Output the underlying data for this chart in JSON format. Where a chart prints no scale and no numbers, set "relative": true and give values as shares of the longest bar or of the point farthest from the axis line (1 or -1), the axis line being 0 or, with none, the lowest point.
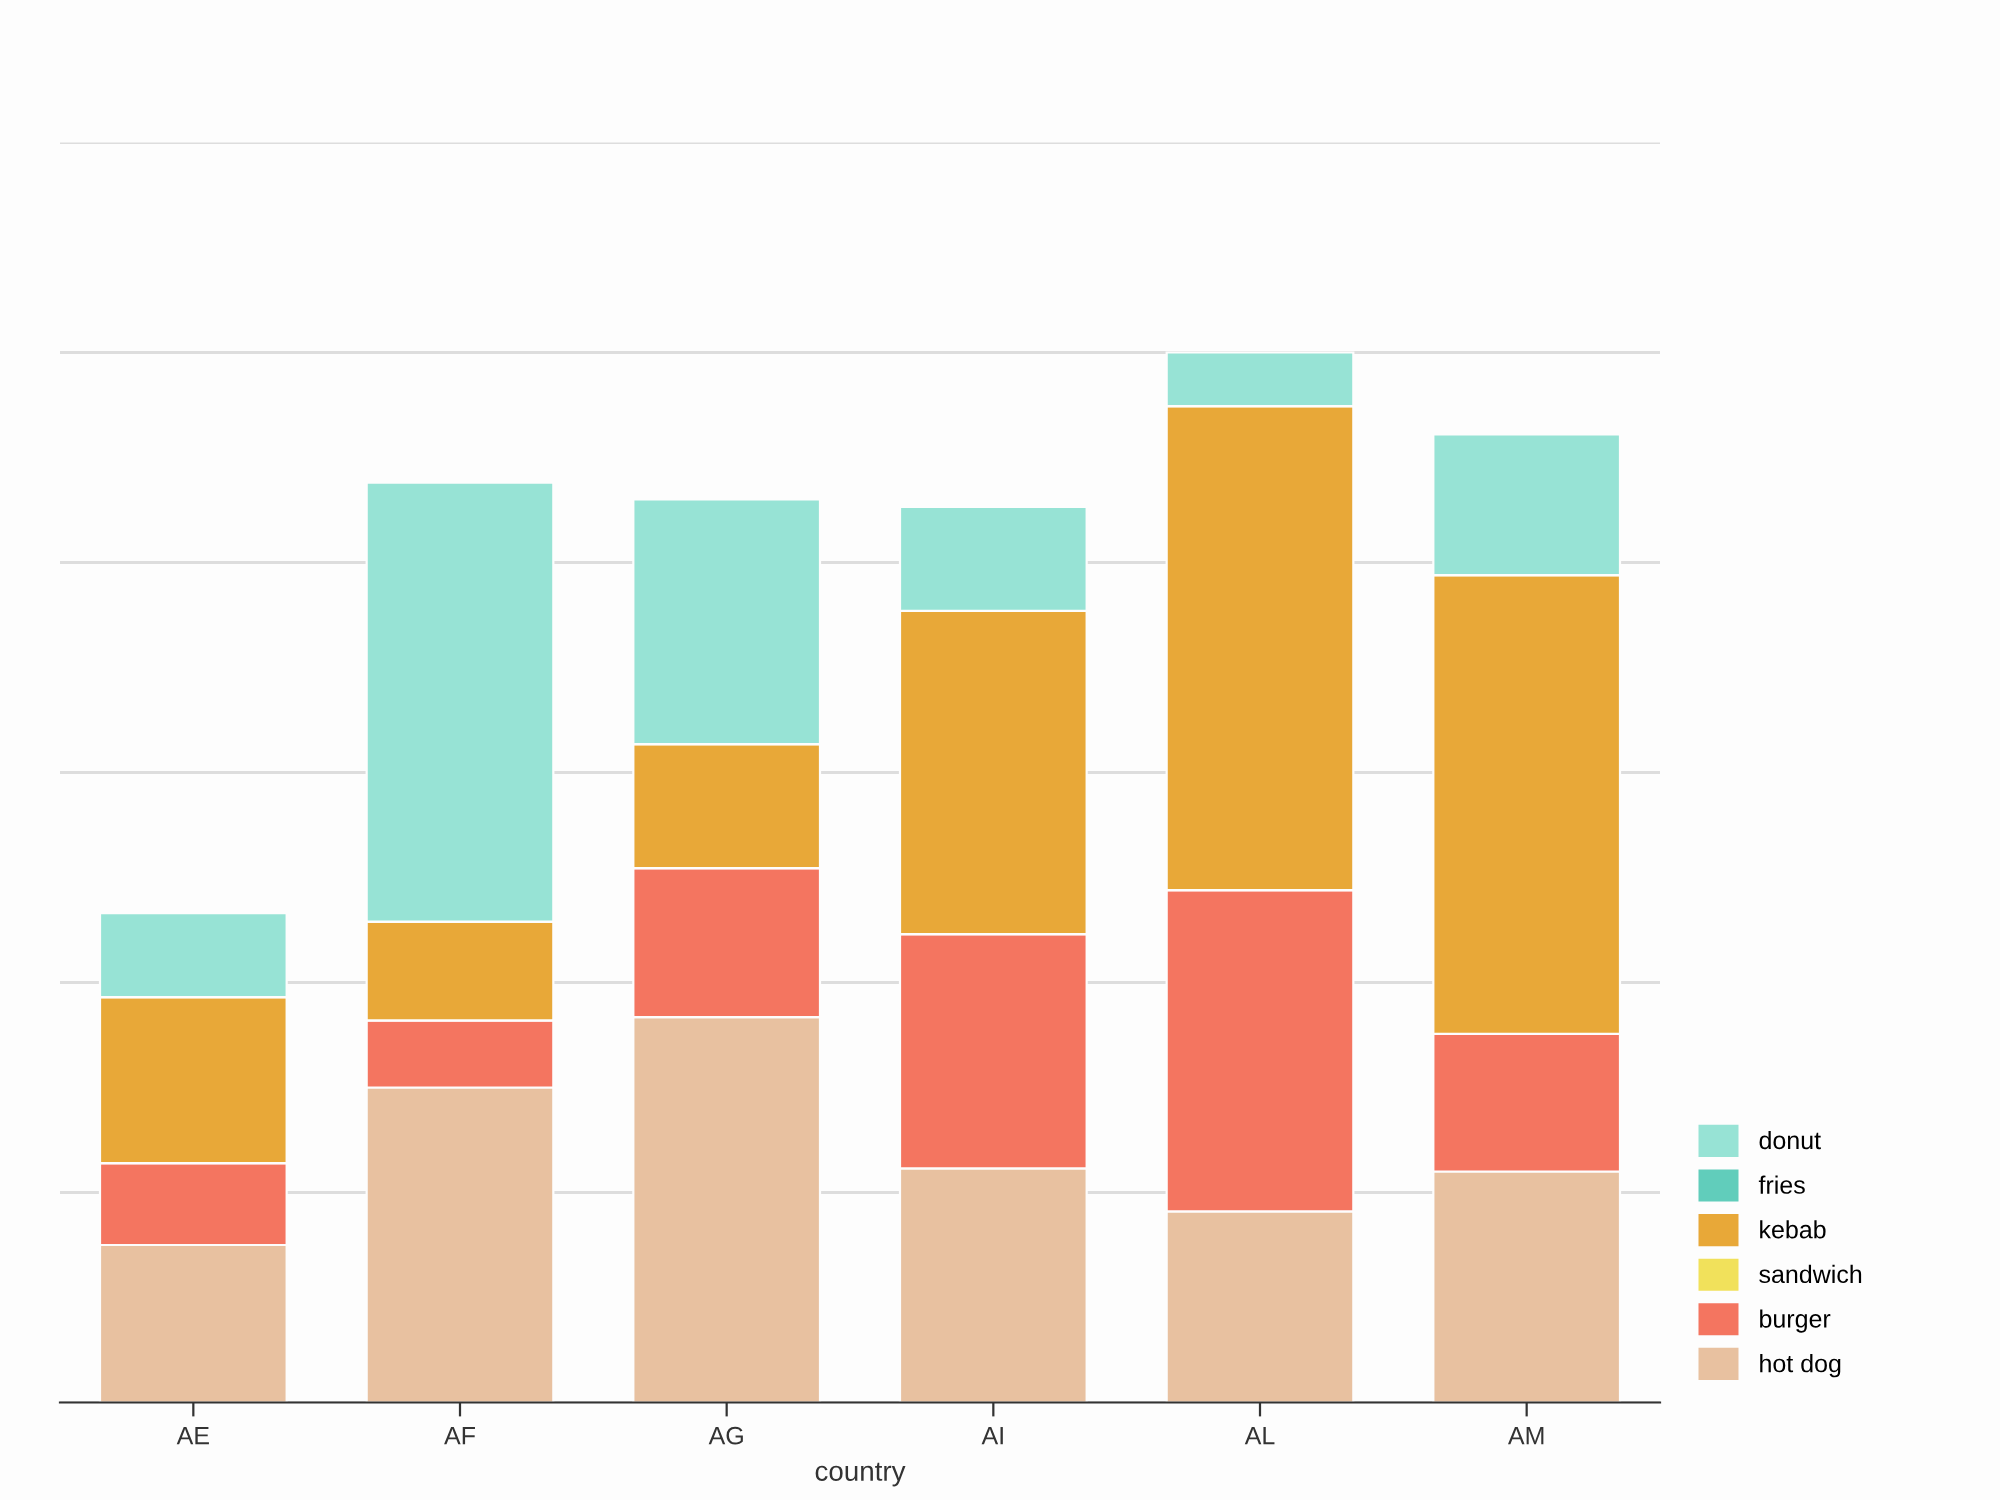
{
  "chart_data": {
    "type": "bar",
    "relative": true,
    "stacked": true,
    "xlabel": "country",
    "categories": [
      "AE",
      "AF",
      "AG",
      "AI",
      "AL",
      "AM"
    ],
    "series": [
      {
        "name": "hot dog",
        "color": "#e8c1a0",
        "values": [
          0.15,
          0.3,
          0.367,
          0.223,
          0.182,
          0.22
        ]
      },
      {
        "name": "burger",
        "color": "#f47560",
        "values": [
          0.078,
          0.064,
          0.142,
          0.223,
          0.306,
          0.131
        ]
      },
      {
        "name": "sandwich",
        "color": "#f1e15b",
        "values": [
          0,
          0,
          0,
          0,
          0,
          0
        ]
      },
      {
        "name": "kebab",
        "color": "#e8a838",
        "values": [
          0.158,
          0.094,
          0.118,
          0.308,
          0.461,
          0.437
        ]
      },
      {
        "name": "fries",
        "color": "#61cdbb",
        "values": [
          0,
          0,
          0,
          0,
          0,
          0
        ]
      },
      {
        "name": "donut",
        "color": "#97e3d5",
        "values": [
          0.08,
          0.418,
          0.233,
          0.099,
          0.051,
          0.134
        ]
      }
    ],
    "grid": "y",
    "legend": "bottom right",
    "tick_labels": "x"
  }
}
